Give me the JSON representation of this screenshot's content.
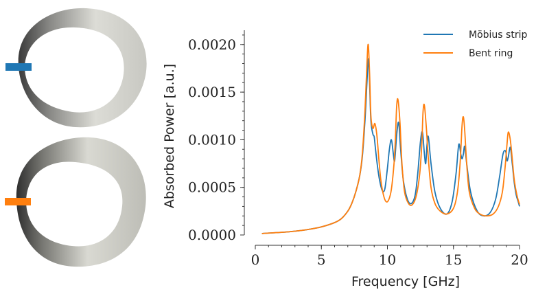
{
  "chart_data": {
    "type": "line",
    "title": "",
    "xlabel": "Frequency [GHz]",
    "ylabel": "Absorbed Power [a.u.]",
    "xlim": [
      0,
      20
    ],
    "ylim": [
      0,
      0.00215
    ],
    "xticks": [
      0,
      5,
      10,
      15,
      20
    ],
    "xtick_labels": [
      "0",
      "5",
      "10",
      "15",
      "20"
    ],
    "yticks": [
      0,
      0.0005,
      0.001,
      0.0015,
      0.002
    ],
    "ytick_labels": [
      "0.0000",
      "0.0005",
      "0.0010",
      "0.0015",
      "0.0020"
    ],
    "grid": false,
    "legend_position": "top-right",
    "series": [
      {
        "name": "Möbius strip",
        "color": "#1f77b4",
        "x": [
          0.5,
          1,
          2,
          3,
          4,
          5,
          6,
          6.5,
          7,
          7.3,
          7.6,
          7.9,
          8.1,
          8.3,
          8.45,
          8.55,
          8.65,
          8.75,
          8.9,
          9.0,
          9.1,
          9.25,
          9.4,
          9.6,
          9.8,
          10.0,
          10.15,
          10.3,
          10.45,
          10.55,
          10.7,
          10.85,
          11.0,
          11.2,
          11.5,
          11.8,
          12.1,
          12.3,
          12.5,
          12.65,
          12.8,
          12.9,
          13.0,
          13.1,
          13.3,
          13.6,
          14.0,
          14.5,
          14.9,
          15.2,
          15.4,
          15.55,
          15.65,
          15.75,
          15.85,
          16.0,
          16.3,
          16.8,
          17.3,
          17.8,
          18.2,
          18.5,
          18.75,
          18.95,
          19.05,
          19.15,
          19.3,
          19.45,
          19.6,
          19.75,
          19.9,
          20.0
        ],
        "y": [
          1.5e-05,
          2e-05,
          2.8e-05,
          4e-05,
          5.8e-05,
          8.5e-05,
          0.00013,
          0.00017,
          0.00025,
          0.00033,
          0.00045,
          0.00062,
          0.00082,
          0.0012,
          0.0016,
          0.00185,
          0.0016,
          0.0012,
          0.00106,
          0.00103,
          0.0009,
          0.00072,
          0.00058,
          0.00047,
          0.00048,
          0.0007,
          0.0009,
          0.001,
          0.00085,
          0.00078,
          0.00105,
          0.00118,
          0.0009,
          0.00058,
          0.00038,
          0.00033,
          0.00042,
          0.00065,
          0.00098,
          0.00108,
          0.00085,
          0.00075,
          0.00095,
          0.00103,
          0.00075,
          0.00045,
          0.00028,
          0.00022,
          0.00035,
          0.00065,
          0.00095,
          0.00085,
          0.0008,
          0.00085,
          0.00093,
          0.00075,
          0.00045,
          0.00025,
          0.0002,
          0.00024,
          0.00038,
          0.00062,
          0.00085,
          0.00088,
          0.00078,
          0.00082,
          0.00092,
          0.00075,
          0.00055,
          0.00042,
          0.00035,
          0.0003
        ]
      },
      {
        "name": "Bent ring",
        "color": "#ff7f0e",
        "x": [
          0.5,
          1,
          2,
          3,
          4,
          5,
          6,
          6.5,
          7,
          7.3,
          7.6,
          7.9,
          8.1,
          8.3,
          8.45,
          8.55,
          8.65,
          8.75,
          8.9,
          9.05,
          9.2,
          9.35,
          9.5,
          9.7,
          9.9,
          10.1,
          10.3,
          10.5,
          10.6,
          10.7,
          10.8,
          10.95,
          11.1,
          11.3,
          11.6,
          11.9,
          12.2,
          12.45,
          12.6,
          12.7,
          12.8,
          12.95,
          13.1,
          13.3,
          13.6,
          14.0,
          14.5,
          15.0,
          15.3,
          15.5,
          15.65,
          15.75,
          15.85,
          16.0,
          16.2,
          16.6,
          17.0,
          17.5,
          18.0,
          18.4,
          18.7,
          18.9,
          19.05,
          19.15,
          19.3,
          19.45,
          19.6,
          19.8,
          20.0
        ],
        "y": [
          1.5e-05,
          2e-05,
          2.8e-05,
          4e-05,
          5.8e-05,
          8.5e-05,
          0.00013,
          0.00017,
          0.00025,
          0.00033,
          0.00045,
          0.00062,
          0.00085,
          0.0013,
          0.0018,
          0.002,
          0.0017,
          0.00125,
          0.00112,
          0.00117,
          0.00105,
          0.0008,
          0.00058,
          0.00042,
          0.00035,
          0.00037,
          0.00048,
          0.00075,
          0.001,
          0.00135,
          0.00142,
          0.00118,
          0.00075,
          0.00045,
          0.00033,
          0.00032,
          0.00042,
          0.00065,
          0.00095,
          0.0013,
          0.00136,
          0.00112,
          0.0008,
          0.0005,
          0.00033,
          0.00025,
          0.00022,
          0.00028,
          0.00045,
          0.00075,
          0.00115,
          0.00124,
          0.0011,
          0.00075,
          0.00045,
          0.00028,
          0.00022,
          0.0002,
          0.00022,
          0.0003,
          0.00045,
          0.0007,
          0.00095,
          0.00108,
          0.001,
          0.0008,
          0.00058,
          0.00042,
          0.00032
        ]
      }
    ]
  },
  "insets": {
    "top": {
      "shape": "mobius-strip",
      "marker_color": "#1f77b4"
    },
    "bottom": {
      "shape": "bent-ring",
      "marker_color": "#ff7f0e"
    }
  }
}
